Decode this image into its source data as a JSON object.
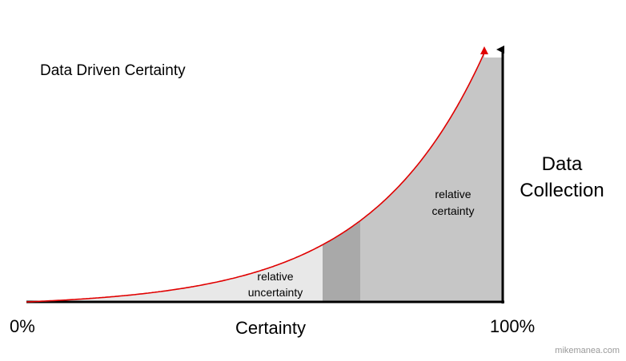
{
  "title": "Data Driven Certainty",
  "y_axis_label": [
    "Data",
    "Collection"
  ],
  "x_axis_label": "Certainty",
  "x_start_label": "0%",
  "x_end_label": "100%",
  "regions": {
    "uncertainty": [
      "relative",
      "uncertainty"
    ],
    "certainty": [
      "relative",
      "certainty"
    ]
  },
  "credit": "mikemanea.com"
}
